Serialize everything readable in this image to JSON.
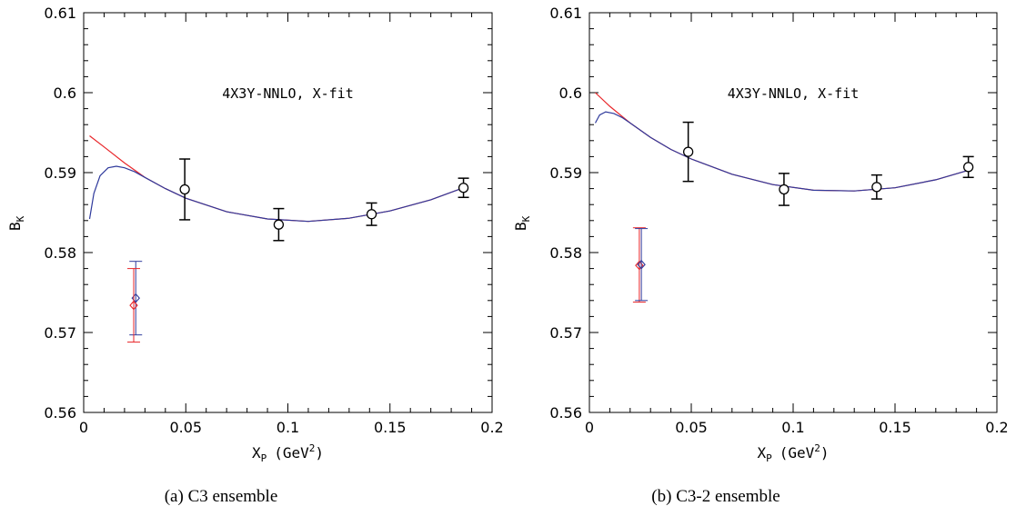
{
  "colors": {
    "axis": "#000000",
    "red": "#e8262a",
    "blue": "#2f3a9c",
    "purple": "#7a2f7a"
  },
  "captions": [
    "(a)  C3 ensemble",
    "(b)  C3-2 ensemble"
  ],
  "chart_data": [
    {
      "type": "scatter",
      "annotation": "4X3Y-NNLO, X-fit",
      "ylabel": "B",
      "ylabel_sub": "K",
      "xlabel": "X",
      "xlabel_sub": "P",
      "xlabel_unit": "(GeV",
      "xlabel_unit_sup": "2",
      "xlabel_unit_close": ")",
      "xlim": [
        0,
        0.2
      ],
      "ylim": [
        0.56,
        0.61
      ],
      "xticks": [
        0,
        0.05,
        0.1,
        0.15,
        0.2
      ],
      "xtick_labels": [
        "0",
        "0.05",
        "0.1",
        "0.15",
        "0.2"
      ],
      "yticks": [
        0.56,
        0.57,
        0.58,
        0.59,
        0.6,
        0.61
      ],
      "ytick_labels": [
        "0.56",
        "0.57",
        "0.58",
        "0.59",
        "0.6",
        "0.61"
      ],
      "points": [
        {
          "x": 0.0495,
          "y": 0.5879,
          "err": 0.0038
        },
        {
          "x": 0.0955,
          "y": 0.5835,
          "err": 0.002
        },
        {
          "x": 0.141,
          "y": 0.5848,
          "err": 0.0014
        },
        {
          "x": 0.186,
          "y": 0.5881,
          "err": 0.0012
        }
      ],
      "extrapolated": [
        {
          "color": "blue",
          "x": 0.0255,
          "y": 0.5743,
          "err_low": 0.0046,
          "err_high": 0.0046
        },
        {
          "color": "red",
          "x": 0.0245,
          "y": 0.5734,
          "err_low": 0.0046,
          "err_high": 0.0046
        }
      ],
      "fit_curves": [
        {
          "color": "red",
          "x": [
            0.0029,
            0.01,
            0.02,
            0.03,
            0.04,
            0.05,
            0.07,
            0.09,
            0.11,
            0.13,
            0.15,
            0.17,
            0.186
          ],
          "y": [
            0.5946,
            0.5932,
            0.5912,
            0.5894,
            0.588,
            0.5868,
            0.5851,
            0.5842,
            0.5839,
            0.5843,
            0.5852,
            0.5866,
            0.5881
          ]
        },
        {
          "color": "blue",
          "x": [
            0.0029,
            0.005,
            0.008,
            0.012,
            0.016,
            0.02,
            0.025,
            0.03,
            0.04,
            0.05,
            0.07,
            0.09,
            0.11,
            0.13,
            0.15,
            0.17,
            0.186
          ],
          "y": [
            0.5842,
            0.5874,
            0.5896,
            0.5906,
            0.5908,
            0.5906,
            0.5901,
            0.5894,
            0.588,
            0.5868,
            0.5851,
            0.5842,
            0.5839,
            0.5843,
            0.5852,
            0.5866,
            0.5881
          ]
        }
      ]
    },
    {
      "type": "scatter",
      "annotation": "4X3Y-NNLO, X-fit",
      "ylabel": "B",
      "ylabel_sub": "K",
      "xlabel": "X",
      "xlabel_sub": "P",
      "xlabel_unit": "(GeV",
      "xlabel_unit_sup": "2",
      "xlabel_unit_close": ")",
      "xlim": [
        0,
        0.2
      ],
      "ylim": [
        0.56,
        0.61
      ],
      "xticks": [
        0,
        0.05,
        0.1,
        0.15,
        0.2
      ],
      "xtick_labels": [
        "0",
        "0.05",
        "0.1",
        "0.15",
        "0.2"
      ],
      "yticks": [
        0.56,
        0.57,
        0.58,
        0.59,
        0.6,
        0.61
      ],
      "ytick_labels": [
        "0.56",
        "0.57",
        "0.58",
        "0.59",
        "0.6",
        "0.61"
      ],
      "points": [
        {
          "x": 0.0485,
          "y": 0.5926,
          "err": 0.0037
        },
        {
          "x": 0.0955,
          "y": 0.5879,
          "err": 0.002
        },
        {
          "x": 0.141,
          "y": 0.5882,
          "err": 0.0015
        },
        {
          "x": 0.186,
          "y": 0.5907,
          "err": 0.0013
        }
      ],
      "extrapolated": [
        {
          "color": "red",
          "x": 0.0245,
          "y": 0.5784,
          "err_low": 0.0046,
          "err_high": 0.0047
        },
        {
          "color": "blue",
          "x": 0.0255,
          "y": 0.5785,
          "err_low": 0.0045,
          "err_high": 0.0045
        }
      ],
      "fit_curves": [
        {
          "color": "red",
          "x": [
            0.0029,
            0.01,
            0.02,
            0.03,
            0.04,
            0.05,
            0.07,
            0.09,
            0.11,
            0.13,
            0.15,
            0.17,
            0.186
          ],
          "y": [
            0.6,
            0.5983,
            0.5962,
            0.5944,
            0.5929,
            0.5917,
            0.5898,
            0.5885,
            0.5878,
            0.5877,
            0.5881,
            0.5891,
            0.5903
          ]
        },
        {
          "color": "blue",
          "x": [
            0.0029,
            0.005,
            0.008,
            0.012,
            0.016,
            0.02,
            0.03,
            0.04,
            0.05,
            0.07,
            0.09,
            0.11,
            0.13,
            0.15,
            0.17,
            0.186
          ],
          "y": [
            0.5962,
            0.5972,
            0.5976,
            0.5974,
            0.5969,
            0.5962,
            0.5944,
            0.5929,
            0.5917,
            0.5898,
            0.5885,
            0.5878,
            0.5877,
            0.5881,
            0.5891,
            0.5903
          ]
        }
      ]
    }
  ]
}
